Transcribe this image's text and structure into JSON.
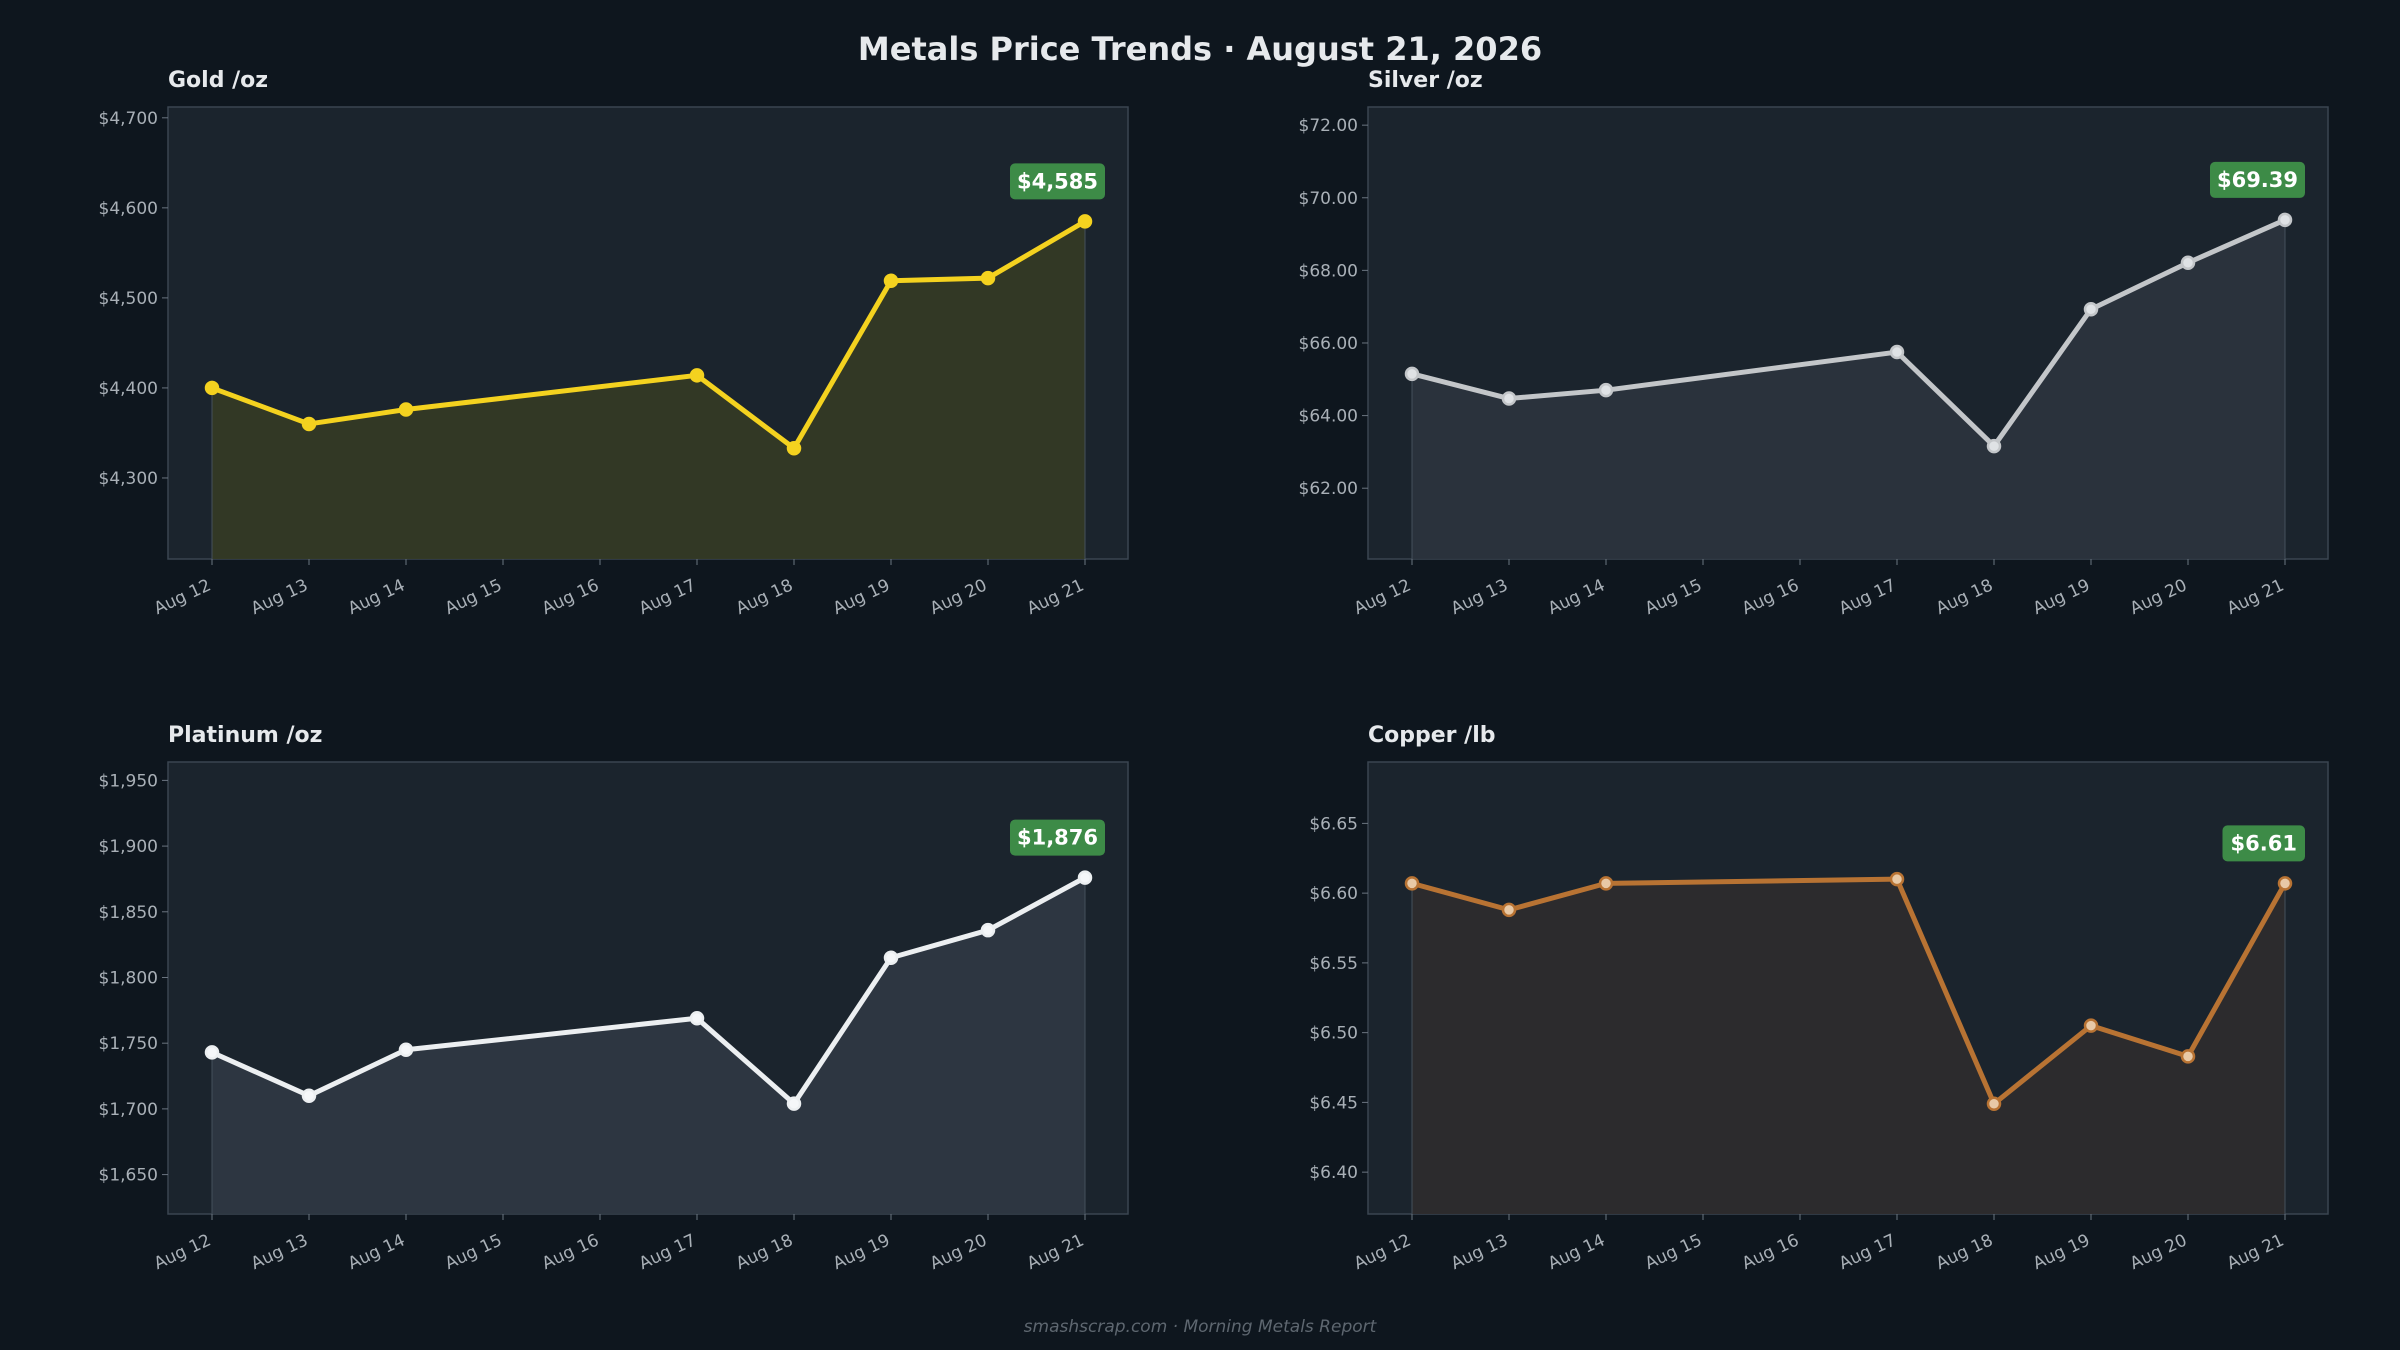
{
  "title": "Metals Price Trends  ·  August 21, 2026",
  "footer": "smashscrap.com  ·  Morning Metals Report",
  "colors": {
    "background": "#0e161e",
    "panel": "#1b242d",
    "badge": "#3d8b47"
  },
  "chart_data": [
    {
      "type": "area",
      "metal": "Gold",
      "title": "Gold  /oz",
      "x": [
        "Aug 12",
        "Aug 13",
        "Aug 14",
        "Aug 17",
        "Aug 18",
        "Aug 19",
        "Aug 20",
        "Aug 21"
      ],
      "xticks": [
        "Aug 12",
        "Aug 13",
        "Aug 14",
        "Aug 15",
        "Aug 16",
        "Aug 17",
        "Aug 18",
        "Aug 19",
        "Aug 20",
        "Aug 21"
      ],
      "values": [
        4400,
        4360,
        4376,
        4414,
        4333,
        4519,
        4522,
        4585
      ],
      "ylim": [
        4210,
        4712
      ],
      "yticks": [
        4300,
        4400,
        4500,
        4600,
        4700
      ],
      "ytick_labels": [
        "$4,300",
        "$4,400",
        "$4,500",
        "$4,600",
        "$4,700"
      ],
      "last_label": "$4,585",
      "line_color": "#f4d21f",
      "fill_color": "#343a25",
      "marker_fill": "#f4d21f",
      "grid": false
    },
    {
      "type": "area",
      "metal": "Silver",
      "title": "Silver  /oz",
      "x": [
        "Aug 12",
        "Aug 13",
        "Aug 14",
        "Aug 17",
        "Aug 18",
        "Aug 19",
        "Aug 20",
        "Aug 21"
      ],
      "xticks": [
        "Aug 12",
        "Aug 13",
        "Aug 14",
        "Aug 15",
        "Aug 16",
        "Aug 17",
        "Aug 18",
        "Aug 19",
        "Aug 20",
        "Aug 21"
      ],
      "values": [
        65.15,
        64.47,
        64.7,
        65.75,
        63.16,
        66.93,
        68.21,
        69.39
      ],
      "ylim": [
        60.05,
        72.5
      ],
      "yticks": [
        62,
        64,
        66,
        68,
        70,
        72
      ],
      "ytick_labels": [
        "$62.00",
        "$64.00",
        "$66.00",
        "$68.00",
        "$70.00",
        "$72.00"
      ],
      "last_label": "$69.39",
      "line_color": "#c3c6c9",
      "fill_color": "#2b343d",
      "marker_fill": "#dfe2e5",
      "grid": false
    },
    {
      "type": "area",
      "metal": "Platinum",
      "title": "Platinum  /oz",
      "x": [
        "Aug 12",
        "Aug 13",
        "Aug 14",
        "Aug 17",
        "Aug 18",
        "Aug 19",
        "Aug 20",
        "Aug 21"
      ],
      "xticks": [
        "Aug 12",
        "Aug 13",
        "Aug 14",
        "Aug 15",
        "Aug 16",
        "Aug 17",
        "Aug 18",
        "Aug 19",
        "Aug 20",
        "Aug 21"
      ],
      "values": [
        1743,
        1710,
        1745,
        1769,
        1704,
        1815,
        1836,
        1876
      ],
      "ylim": [
        1620,
        1964
      ],
      "yticks": [
        1650,
        1700,
        1750,
        1800,
        1850,
        1900,
        1950
      ],
      "ytick_labels": [
        "$1,650",
        "$1,700",
        "$1,750",
        "$1,800",
        "$1,850",
        "$1,900",
        "$1,950"
      ],
      "last_label": "$1,876",
      "line_color": "#eceff1",
      "fill_color": "#2e3842",
      "marker_fill": "#f5f7f9",
      "grid": false
    },
    {
      "type": "area",
      "metal": "Copper",
      "title": "Copper  /lb",
      "x": [
        "Aug 12",
        "Aug 13",
        "Aug 14",
        "Aug 17",
        "Aug 18",
        "Aug 19",
        "Aug 20",
        "Aug 21"
      ],
      "xticks": [
        "Aug 12",
        "Aug 13",
        "Aug 14",
        "Aug 15",
        "Aug 16",
        "Aug 17",
        "Aug 18",
        "Aug 19",
        "Aug 20",
        "Aug 21"
      ],
      "values": [
        6.607,
        6.588,
        6.607,
        6.61,
        6.449,
        6.505,
        6.483,
        6.607
      ],
      "ylim": [
        6.37,
        6.694
      ],
      "yticks": [
        6.4,
        6.45,
        6.5,
        6.55,
        6.6,
        6.65
      ],
      "ytick_labels": [
        "$6.40",
        "$6.45",
        "$6.50",
        "$6.55",
        "$6.60",
        "$6.65"
      ],
      "last_label": "$6.61",
      "line_color": "#b87333",
      "fill_color": "#2d2c2d",
      "marker_fill": "#e8c9a6",
      "grid": false
    }
  ]
}
